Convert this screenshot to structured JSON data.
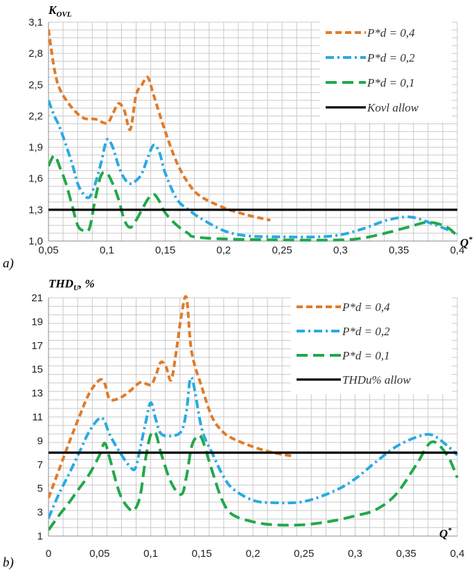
{
  "chart_data": [
    {
      "type": "line",
      "panel_label": "a)",
      "ylabel_main": "K",
      "ylabel_sub": "OVL",
      "xlabel_main": "Q",
      "xlabel_sup": "*",
      "xlim": [
        0.05,
        0.4
      ],
      "ylim": [
        1.0,
        3.1
      ],
      "x_ticks": [
        0.05,
        0.1,
        0.15,
        0.2,
        0.25,
        0.3,
        0.35,
        0.4
      ],
      "x_tick_labels": [
        "0,05",
        "0,1",
        "0,15",
        "0,2",
        "0,25",
        "0,3",
        "0,35",
        "0,4"
      ],
      "y_ticks": [
        1.0,
        1.3,
        1.6,
        1.9,
        2.2,
        2.5,
        2.8,
        3.1
      ],
      "y_tick_labels": [
        "1,0",
        "1,3",
        "1,6",
        "1,9",
        "2,2",
        "2,5",
        "2,8",
        "3,1"
      ],
      "grid": true,
      "legend_position": "top-right",
      "series": [
        {
          "name": "P*d = 0,4",
          "color": "#e07b29",
          "dash": "dashed",
          "x": [
            0.05,
            0.055,
            0.06,
            0.07,
            0.08,
            0.09,
            0.1,
            0.105,
            0.11,
            0.115,
            0.12,
            0.125,
            0.13,
            0.135,
            0.14,
            0.15,
            0.16,
            0.17,
            0.18,
            0.2,
            0.22,
            0.24
          ],
          "y": [
            3.03,
            2.65,
            2.45,
            2.28,
            2.18,
            2.17,
            2.13,
            2.22,
            2.32,
            2.25,
            2.07,
            2.4,
            2.5,
            2.57,
            2.4,
            2.05,
            1.75,
            1.55,
            1.43,
            1.32,
            1.25,
            1.2
          ]
        },
        {
          "name": "P*d = 0,2",
          "color": "#29aae2",
          "dash": "dashdot",
          "x": [
            0.05,
            0.055,
            0.06,
            0.07,
            0.075,
            0.08,
            0.085,
            0.09,
            0.095,
            0.1,
            0.105,
            0.11,
            0.115,
            0.12,
            0.125,
            0.13,
            0.135,
            0.14,
            0.145,
            0.15,
            0.16,
            0.17,
            0.18,
            0.2,
            0.22,
            0.25,
            0.28,
            0.3,
            0.32,
            0.34,
            0.36,
            0.38,
            0.4
          ],
          "y": [
            2.35,
            2.2,
            2.08,
            1.75,
            1.55,
            1.45,
            1.42,
            1.55,
            1.75,
            1.97,
            1.9,
            1.72,
            1.6,
            1.55,
            1.58,
            1.65,
            1.8,
            1.92,
            1.85,
            1.65,
            1.4,
            1.3,
            1.22,
            1.1,
            1.05,
            1.04,
            1.04,
            1.06,
            1.12,
            1.2,
            1.23,
            1.16,
            1.07
          ]
        },
        {
          "name": "P*d = 0,1",
          "color": "#22a84a",
          "dash": "longdash",
          "x": [
            0.05,
            0.055,
            0.06,
            0.065,
            0.07,
            0.075,
            0.08,
            0.085,
            0.09,
            0.095,
            0.1,
            0.105,
            0.11,
            0.115,
            0.12,
            0.125,
            0.13,
            0.135,
            0.14,
            0.145,
            0.15,
            0.16,
            0.17,
            0.175,
            0.2,
            0.25,
            0.3,
            0.32,
            0.34,
            0.36,
            0.375,
            0.39,
            0.4
          ],
          "y": [
            1.72,
            1.82,
            1.7,
            1.55,
            1.35,
            1.15,
            1.1,
            1.12,
            1.4,
            1.63,
            1.65,
            1.55,
            1.4,
            1.2,
            1.13,
            1.2,
            1.3,
            1.4,
            1.45,
            1.38,
            1.27,
            1.15,
            1.07,
            1.04,
            1.02,
            1.01,
            1.01,
            1.03,
            1.08,
            1.14,
            1.18,
            1.14,
            1.05
          ]
        },
        {
          "name": "Kovl allow",
          "color": "#000000",
          "dash": "solid",
          "x": [
            0.05,
            0.4
          ],
          "y": [
            1.3,
            1.3
          ]
        }
      ]
    },
    {
      "type": "line",
      "panel_label": "b)",
      "ylabel_main": "THD",
      "ylabel_sub": "U",
      "ylabel_suffix": ", %",
      "xlabel_main": "Q",
      "xlabel_sup": "*",
      "xlim": [
        0,
        0.4
      ],
      "ylim": [
        1,
        21
      ],
      "x_ticks": [
        0,
        0.05,
        0.1,
        0.15,
        0.2,
        0.25,
        0.3,
        0.35,
        0.4
      ],
      "x_tick_labels": [
        "0",
        "0,05",
        "0,1",
        "0,15",
        "0,2",
        "0,25",
        "0,3",
        "0,35",
        "0,4"
      ],
      "y_ticks": [
        1,
        3,
        5,
        7,
        9,
        11,
        13,
        15,
        17,
        19,
        21
      ],
      "y_tick_labels": [
        "1",
        "3",
        "5",
        "7",
        "9",
        "11",
        "13",
        "15",
        "17",
        "19",
        "21"
      ],
      "grid": true,
      "legend_position": "top-right",
      "series": [
        {
          "name": "P*d = 0,4",
          "color": "#e07b29",
          "dash": "dashed",
          "x": [
            0,
            0.01,
            0.02,
            0.03,
            0.04,
            0.05,
            0.055,
            0.06,
            0.07,
            0.08,
            0.09,
            0.1,
            0.105,
            0.11,
            0.115,
            0.12,
            0.125,
            0.13,
            0.135,
            0.14,
            0.15,
            0.16,
            0.17,
            0.18,
            0.2,
            0.22,
            0.24
          ],
          "y": [
            4.2,
            6.5,
            8.8,
            11,
            13,
            14.1,
            13.8,
            12.5,
            12.6,
            13.2,
            13.9,
            13.7,
            14.5,
            15.6,
            15.2,
            14.1,
            16.5,
            19.5,
            21,
            16.5,
            13.5,
            11,
            9.8,
            9.2,
            8.5,
            8,
            7.7
          ]
        },
        {
          "name": "P*d = 0,2",
          "color": "#29aae2",
          "dash": "dashdot",
          "x": [
            0,
            0.01,
            0.02,
            0.03,
            0.04,
            0.05,
            0.055,
            0.06,
            0.07,
            0.08,
            0.085,
            0.09,
            0.095,
            0.1,
            0.105,
            0.11,
            0.12,
            0.13,
            0.135,
            0.14,
            0.15,
            0.16,
            0.17,
            0.18,
            0.2,
            0.22,
            0.25,
            0.28,
            0.3,
            0.32,
            0.34,
            0.36,
            0.375,
            0.39,
            0.4
          ],
          "y": [
            2.5,
            4.5,
            6.2,
            8,
            9.8,
            10.9,
            10.6,
            9.5,
            8,
            6.8,
            6.7,
            8.5,
            10.5,
            12.2,
            10.8,
            9.6,
            9.4,
            9.8,
            11.5,
            14.3,
            10,
            8,
            6.2,
            5,
            4,
            3.8,
            3.9,
            4.8,
            5.8,
            7.2,
            8.5,
            9.3,
            9.5,
            8.6,
            7.8
          ]
        },
        {
          "name": "P*d = 0,1",
          "color": "#22a84a",
          "dash": "longdash",
          "x": [
            0,
            0.01,
            0.02,
            0.03,
            0.04,
            0.05,
            0.055,
            0.06,
            0.07,
            0.08,
            0.085,
            0.09,
            0.095,
            0.1,
            0.105,
            0.11,
            0.12,
            0.13,
            0.135,
            0.14,
            0.145,
            0.15,
            0.16,
            0.17,
            0.18,
            0.2,
            0.22,
            0.25,
            0.28,
            0.3,
            0.32,
            0.34,
            0.36,
            0.375,
            0.39,
            0.4
          ],
          "y": [
            1.5,
            2.7,
            3.8,
            5,
            6.2,
            7.8,
            8.8,
            7.5,
            4.5,
            3.2,
            3.3,
            4.5,
            7.5,
            9.5,
            9.6,
            8,
            5.5,
            4.5,
            6,
            8.5,
            9.3,
            9.2,
            6.5,
            4,
            2.8,
            2.2,
            1.95,
            1.95,
            2.3,
            2.7,
            3.2,
            4.5,
            7,
            8.9,
            7.8,
            5.9
          ]
        },
        {
          "name": "THDu% allow",
          "color": "#000000",
          "dash": "solid",
          "x": [
            0,
            0.4
          ],
          "y": [
            8,
            8
          ]
        }
      ]
    }
  ]
}
